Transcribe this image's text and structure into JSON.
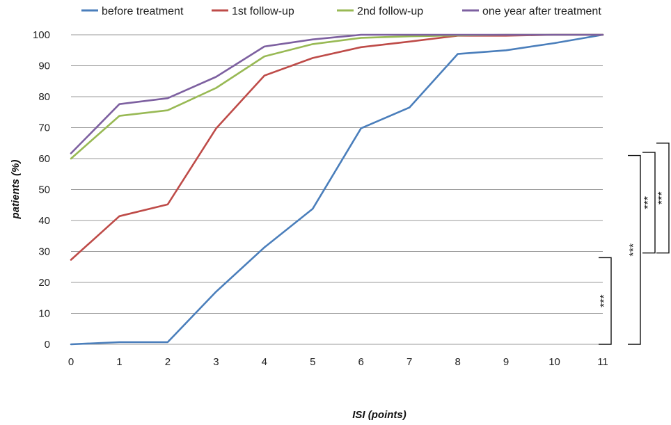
{
  "chart_data": {
    "type": "line",
    "title": "",
    "xlabel": "ISI (points)",
    "ylabel": "patients (%)",
    "x": [
      0,
      1,
      2,
      3,
      4,
      5,
      6,
      7,
      8,
      9,
      10,
      11
    ],
    "xlim": [
      0,
      11
    ],
    "ylim": [
      0,
      100
    ],
    "yticks": [
      0,
      10,
      20,
      30,
      40,
      50,
      60,
      70,
      80,
      90,
      100
    ],
    "grid": true,
    "legend_position": "top",
    "series": [
      {
        "name": "before treatment",
        "color": "#4a7ebb",
        "values": [
          0,
          0.7,
          0.7,
          17,
          31.3,
          43.8,
          69.8,
          76.5,
          93.8,
          95,
          97.3,
          100
        ]
      },
      {
        "name": "1st follow-up",
        "color": "#be4b48",
        "values": [
          27.3,
          41.4,
          45.2,
          69.7,
          86.8,
          92.5,
          96,
          97.8,
          99.7,
          99.7,
          100,
          100
        ]
      },
      {
        "name": "2nd follow-up",
        "color": "#98b954",
        "values": [
          60,
          73.8,
          75.6,
          82.8,
          93,
          97,
          99,
          99.5,
          99.8,
          100,
          100,
          100
        ]
      },
      {
        "name": "one year after treatment",
        "color": "#7d60a0",
        "values": [
          61.7,
          77.6,
          79.5,
          86.4,
          96.2,
          98.5,
          100,
          100,
          100,
          100,
          100,
          100
        ]
      }
    ],
    "annotations": [
      {
        "label": "***",
        "y_range": [
          0,
          28
        ]
      },
      {
        "label": "***",
        "y_range": [
          0,
          61
        ]
      },
      {
        "label": "***",
        "y_range": [
          29.5,
          62
        ]
      },
      {
        "label": "***",
        "y_range": [
          29.5,
          65
        ]
      }
    ]
  }
}
